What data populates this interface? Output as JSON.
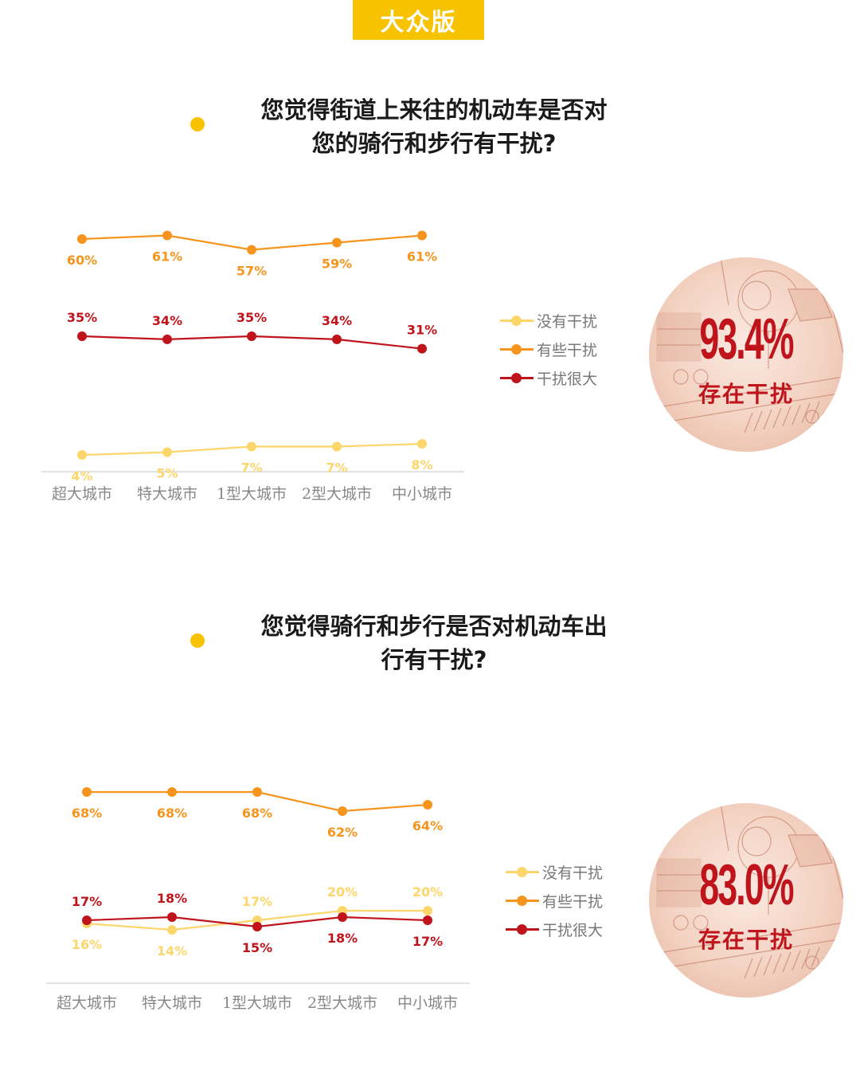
{
  "header": {
    "tag": "大众版"
  },
  "colors": {
    "no": "#fdd66b",
    "some": "#f7941d",
    "big": "#c0141c",
    "axis": "#d9d9d9",
    "tick": "#888888"
  },
  "sections": [
    {
      "question": [
        "您觉得街道上来往的机动车是否对",
        "您的骑行和步行有干扰?"
      ],
      "legend": [
        "没有干扰",
        "有些干扰",
        "干扰很大"
      ],
      "badge": {
        "pct": "93.4%",
        "label": "存在干扰"
      },
      "chart_data": {
        "type": "line",
        "categories": [
          "超大城市",
          "特大城市",
          "1型大城市",
          "2型大城市",
          "中小城市"
        ],
        "series": [
          {
            "name": "没有干扰",
            "values": [
              4,
              5,
              7,
              7,
              8
            ],
            "labels": [
              "4%",
              "5%",
              "7%",
              "7%",
              "8%"
            ]
          },
          {
            "name": "有些干扰",
            "values": [
              60,
              61,
              57,
              59,
              61
            ],
            "labels": [
              "60%",
              "61%",
              "57%",
              "59%",
              "61%"
            ]
          },
          {
            "name": "干扰很大",
            "values": [
              35,
              34,
              35,
              34,
              31
            ],
            "labels": [
              "35%",
              "34%",
              "35%",
              "34%",
              "31%"
            ]
          }
        ],
        "legend_position": "right"
      }
    },
    {
      "question": [
        "您觉得骑行和步行是否对机动车出",
        "行有干扰?"
      ],
      "legend": [
        "没有干扰",
        "有些干扰",
        "干扰很大"
      ],
      "badge": {
        "pct": "83.0%",
        "label": "存在干扰"
      },
      "chart_data": {
        "type": "line",
        "categories": [
          "超大城市",
          "特大城市",
          "1型大城市",
          "2型大城市",
          "中小城市"
        ],
        "series": [
          {
            "name": "没有干扰",
            "values": [
              16,
              14,
              17,
              20,
              20
            ],
            "labels": [
              "16%",
              "14%",
              "17%",
              "20%",
              "20%"
            ]
          },
          {
            "name": "有些干扰",
            "values": [
              68,
              68,
              68,
              62,
              64
            ],
            "labels": [
              "68%",
              "68%",
              "68%",
              "62%",
              "64%"
            ]
          },
          {
            "name": "干扰很大",
            "values": [
              17,
              18,
              15,
              18,
              17
            ],
            "labels": [
              "17%",
              "18%",
              "15%",
              "18%",
              "17%"
            ]
          }
        ],
        "legend_position": "right"
      }
    }
  ]
}
